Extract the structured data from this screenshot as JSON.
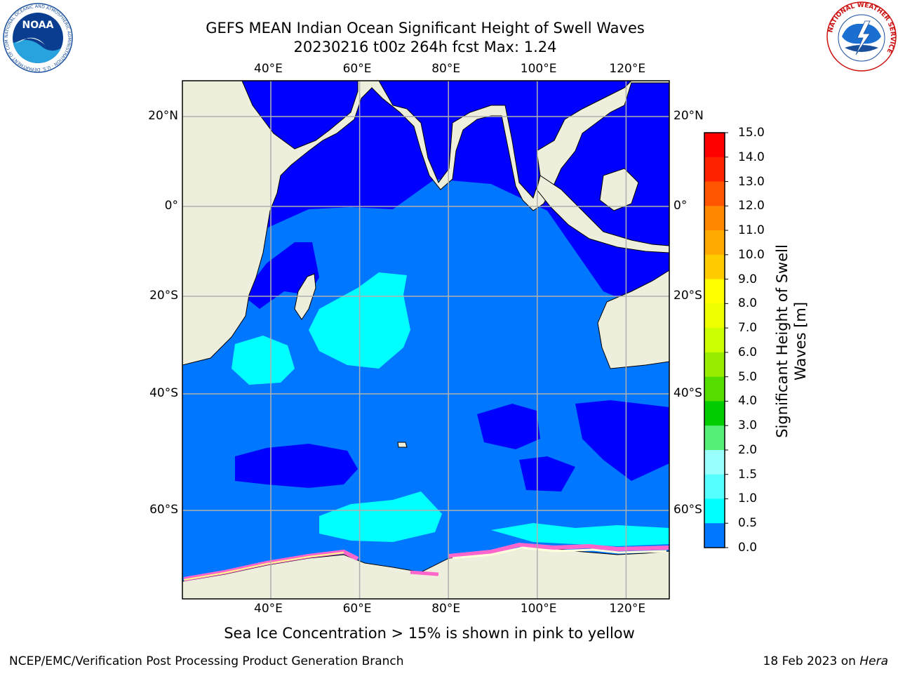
{
  "header": {
    "title_line1": "GEFS MEAN Indian Ocean Significant Height of Swell Waves",
    "title_line2": "20230216 t00z 264h fcst   Max: 1.24"
  },
  "logos": {
    "noaa_text": "NOAA",
    "noaa_ring_text": "NATIONAL OCEANIC AND ATMOSPHERIC ADMINISTRATION · U.S. DEPARTMENT OF COMMERCE",
    "nws_ring_text": "NATIONAL WEATHER SERVICE"
  },
  "map": {
    "lon_labels": [
      {
        "value": 40,
        "text": "40°E"
      },
      {
        "value": 60,
        "text": "60°E"
      },
      {
        "value": 80,
        "text": "80°E"
      },
      {
        "value": 100,
        "text": "100°E"
      },
      {
        "value": 120,
        "text": "120°E"
      }
    ],
    "lat_labels": [
      {
        "value": 20,
        "text": "20°N"
      },
      {
        "value": 0,
        "text": "0°"
      },
      {
        "value": -20,
        "text": "20°S"
      },
      {
        "value": -40,
        "text": "40°S"
      },
      {
        "value": -60,
        "text": "60°S"
      }
    ],
    "lon_range": [
      20,
      130
    ],
    "lat_range": [
      -72,
      28
    ],
    "colors": {
      "land": "#eeeedc",
      "swell_0_0.5": "#0000ff",
      "swell_0.5_1.0": "#0077ff",
      "swell_1.0_1.5": "#00ffff",
      "ice_edge": "#ff66cc"
    }
  },
  "colorbar": {
    "label": "Significant Height of Swell\nWaves [m]",
    "ticks": [
      "15.0",
      "14.0",
      "13.0",
      "12.0",
      "11.0",
      "10.0",
      "9.0",
      "8.0",
      "7.0",
      "6.0",
      "5.0",
      "4.0",
      "3.0",
      "2.0",
      "1.5",
      "1.0",
      "0.5",
      "0.0"
    ],
    "colors_top_to_bottom": [
      "#ff0000",
      "#ff2200",
      "#ff5500",
      "#ff8800",
      "#ffaa00",
      "#ffcc00",
      "#ffff00",
      "#eeff00",
      "#ccff00",
      "#99ee00",
      "#55dd00",
      "#00cc00",
      "#55ee77",
      "#99ffff",
      "#55ffff",
      "#00ffff",
      "#0077ff",
      "#0000ff"
    ]
  },
  "notes": {
    "ice": "Sea Ice Concentration > 15% is shown in pink to yellow"
  },
  "footer": {
    "left": "NCEP/EMC/Verification Post Processing Product Generation Branch",
    "right_prefix": "18 Feb 2023 on ",
    "right_host": "Hera"
  }
}
